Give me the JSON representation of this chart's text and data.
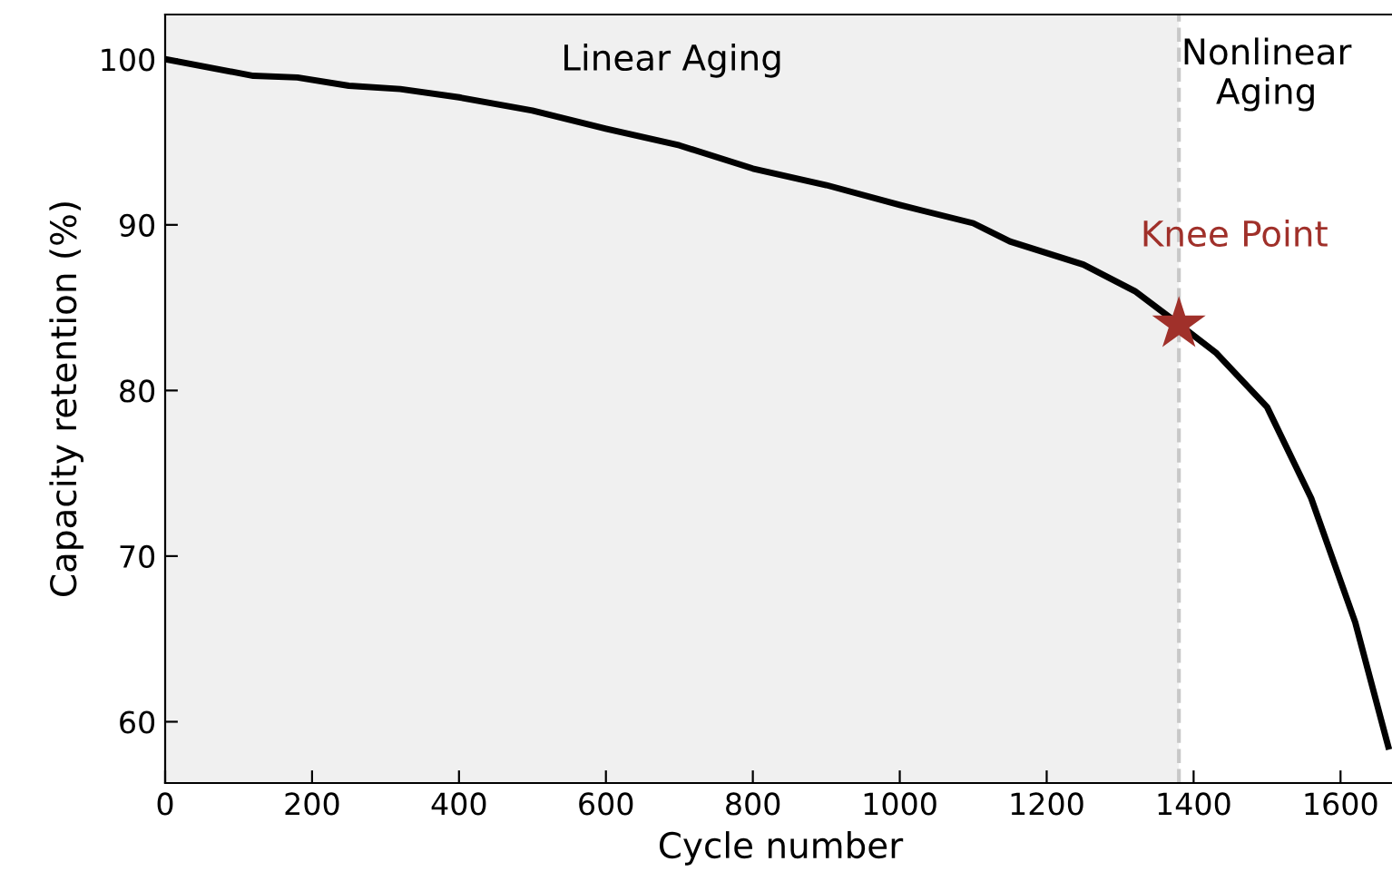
{
  "chart_data": {
    "type": "line",
    "xlabel": "Cycle number",
    "ylabel": "Capacity retention (%)",
    "xlim": [
      0,
      1675
    ],
    "ylim": [
      56.3,
      102.7
    ],
    "xticks": [
      0,
      200,
      400,
      600,
      800,
      1000,
      1200,
      1400,
      1600
    ],
    "yticks": [
      60,
      70,
      80,
      90,
      100
    ],
    "grid": false,
    "legend": false,
    "series": [
      {
        "color": "#000000",
        "x": [
          0,
          120,
          180,
          250,
          320,
          400,
          500,
          600,
          700,
          800,
          900,
          1000,
          1100,
          1150,
          1250,
          1320,
          1380,
          1430,
          1500,
          1560,
          1620,
          1665
        ],
        "values": [
          100,
          99.0,
          98.9,
          98.4,
          98.2,
          97.7,
          96.9,
          95.8,
          94.8,
          93.4,
          92.4,
          91.2,
          90.1,
          89.0,
          87.6,
          86.0,
          84.0,
          82.3,
          79.0,
          73.5,
          66.0,
          58.5
        ]
      },
      {
        "type": "scatter",
        "marker": "star",
        "color": "#a0302a",
        "x": [
          1380
        ],
        "values": [
          84.0
        ]
      }
    ],
    "ref_lines": [
      {
        "axis": "x",
        "value": 1380,
        "color": "#c8c8c8",
        "line_style": "dashed"
      }
    ],
    "bands": [
      {
        "axis": "x",
        "from": 0,
        "to": 1380,
        "label": "Linear Aging",
        "color": "#f0f0f0"
      }
    ],
    "annotations": [
      {
        "text": "Knee Point",
        "x": 1380,
        "y": 84.0
      },
      "Nonlinear\nAging"
    ]
  }
}
